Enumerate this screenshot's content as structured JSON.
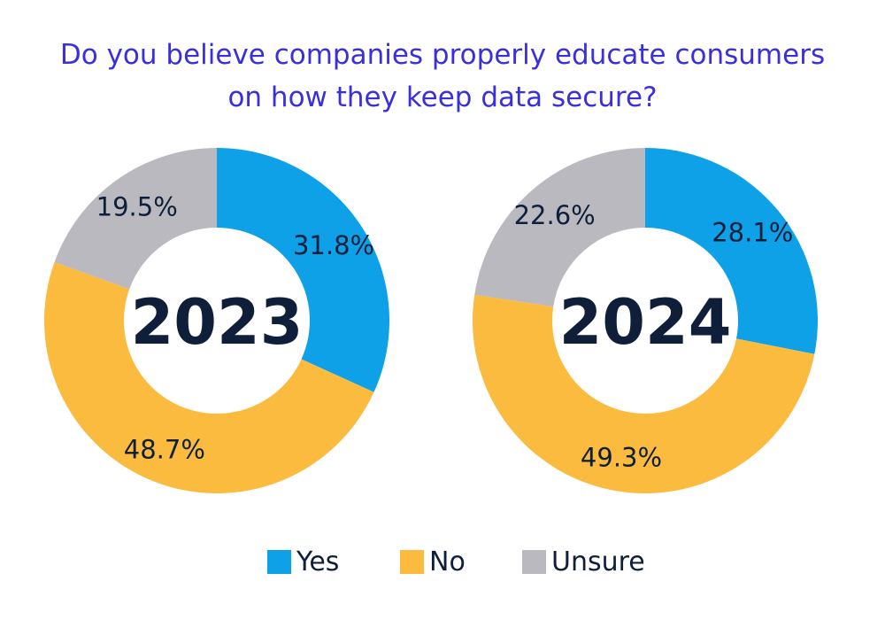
{
  "title": {
    "line1": "Do you believe companies properly educate consumers",
    "line2": "on how they keep data secure?"
  },
  "colors": {
    "yes": "#0ea1e8",
    "no": "#fbbb3f",
    "unsure": "#b9b9bf",
    "text_dark": "#0f1f3a",
    "title": "#3a2fdc"
  },
  "legend": [
    {
      "key": "yes",
      "label": "Yes"
    },
    {
      "key": "no",
      "label": "No"
    },
    {
      "key": "unsure",
      "label": "Unsure"
    }
  ],
  "chart_data": [
    {
      "type": "pie",
      "center_label": "2023",
      "slices": [
        {
          "key": "yes",
          "label": "Yes",
          "value": 31.8,
          "display": "31.8%"
        },
        {
          "key": "no",
          "label": "No",
          "value": 48.7,
          "display": "48.7%"
        },
        {
          "key": "unsure",
          "label": "Unsure",
          "value": 19.5,
          "display": "19.5%"
        }
      ]
    },
    {
      "type": "pie",
      "center_label": "2024",
      "slices": [
        {
          "key": "yes",
          "label": "Yes",
          "value": 28.1,
          "display": "28.1%"
        },
        {
          "key": "no",
          "label": "No",
          "value": 49.3,
          "display": "49.3%"
        },
        {
          "key": "unsure",
          "label": "Unsure",
          "value": 22.6,
          "display": "22.6%"
        }
      ]
    }
  ]
}
